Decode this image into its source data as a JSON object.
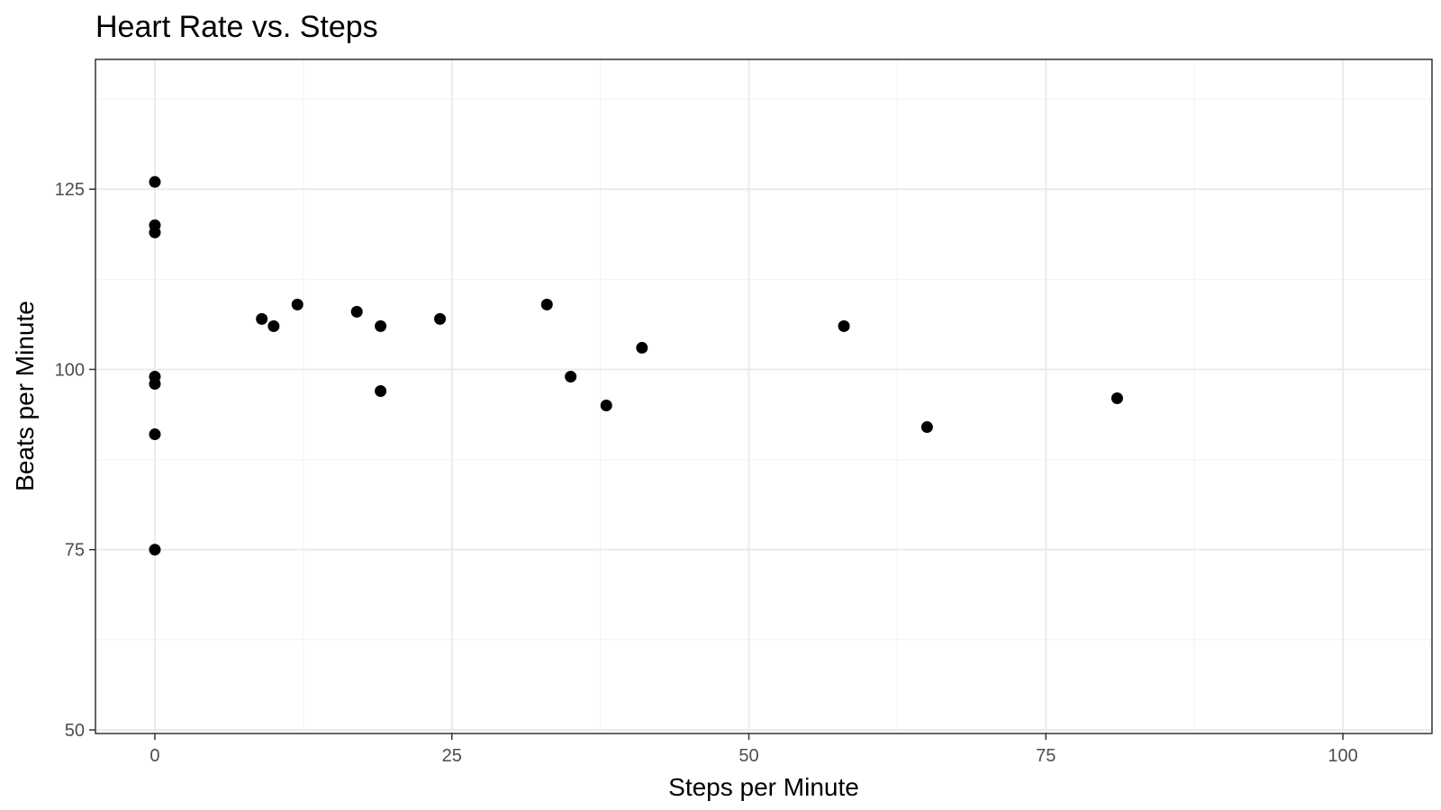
{
  "chart_data": {
    "type": "scatter",
    "title": "Heart Rate vs. Steps",
    "xlabel": "Steps per Minute",
    "ylabel": "Beats per Minute",
    "xlim": [
      -5,
      107.5
    ],
    "ylim": [
      49.5,
      143
    ],
    "x_ticks": [
      0,
      25,
      50,
      75,
      100
    ],
    "y_ticks": [
      50,
      75,
      100,
      125
    ],
    "x_tick_labels": [
      "0",
      "25",
      "50",
      "75",
      "100"
    ],
    "y_tick_labels": [
      "50",
      "75",
      "100",
      "125"
    ],
    "grid": true,
    "legend": "none",
    "point_color": "#000000",
    "points": [
      {
        "x": 0,
        "y": 126
      },
      {
        "x": 0,
        "y": 120
      },
      {
        "x": 0,
        "y": 119
      },
      {
        "x": 0,
        "y": 99
      },
      {
        "x": 0,
        "y": 98
      },
      {
        "x": 0,
        "y": 91
      },
      {
        "x": 0,
        "y": 75
      },
      {
        "x": 9,
        "y": 107
      },
      {
        "x": 10,
        "y": 106
      },
      {
        "x": 12,
        "y": 109
      },
      {
        "x": 17,
        "y": 108
      },
      {
        "x": 19,
        "y": 106
      },
      {
        "x": 19,
        "y": 97
      },
      {
        "x": 24,
        "y": 107
      },
      {
        "x": 33,
        "y": 109
      },
      {
        "x": 35,
        "y": 99
      },
      {
        "x": 38,
        "y": 95
      },
      {
        "x": 41,
        "y": 103
      },
      {
        "x": 58,
        "y": 106
      },
      {
        "x": 65,
        "y": 92
      },
      {
        "x": 81,
        "y": 96
      }
    ]
  }
}
